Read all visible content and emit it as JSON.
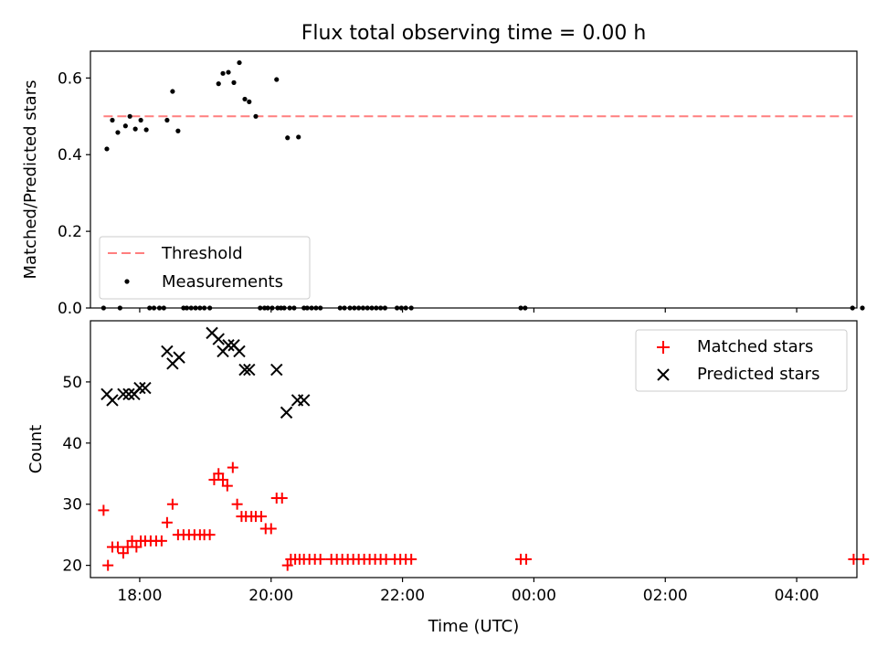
{
  "chart_data": {
    "title": "Flux total observing time = 0.00 h",
    "xlabel": "Time (UTC)",
    "xlim": [
      "17:15",
      "28:55"
    ],
    "xticks": [
      "18:00",
      "20:00",
      "22:00",
      "00:00",
      "02:00",
      "04:00"
    ],
    "top": {
      "type": "scatter",
      "ylabel": "Matched/Predicted stars",
      "ylim": [
        0,
        0.67
      ],
      "yticks": [
        "0.0",
        "0.2",
        "0.4",
        "0.6"
      ],
      "legend_position": "lower-left",
      "threshold": {
        "name": "Threshold",
        "value": 0.5,
        "x_range": [
          "17:27",
          "28:55"
        ],
        "color": "#ff7f7f",
        "style": "dashed"
      },
      "series": [
        {
          "name": "Measurements",
          "color": "#000000",
          "x": [
            "17:30",
            "17:35",
            "17:40",
            "17:47",
            "17:51",
            "17:56",
            "18:01",
            "18:06",
            "18:25",
            "18:30",
            "18:35",
            "19:12",
            "19:16",
            "19:21",
            "19:26",
            "19:31",
            "19:36",
            "19:40",
            "19:46",
            "20:05",
            "20:15",
            "20:25",
            "20:30",
            "17:27",
            "17:42",
            "18:09",
            "18:13",
            "18:18",
            "18:22",
            "18:40",
            "18:43",
            "18:47",
            "18:51",
            "18:55",
            "18:59",
            "19:04",
            "19:50",
            "19:54",
            "19:57",
            "20:01",
            "20:06",
            "20:09",
            "20:12",
            "20:17",
            "20:21",
            "20:33",
            "20:37",
            "20:41",
            "20:45",
            "21:03",
            "21:07",
            "21:12",
            "21:16",
            "21:20",
            "21:24",
            "21:28",
            "21:32",
            "21:36",
            "21:40",
            "21:44",
            "21:55",
            "21:59",
            "22:03",
            "22:08",
            "23:48",
            "23:52",
            "28:51",
            "29:00"
          ],
          "y": [
            0.415,
            0.49,
            0.458,
            0.475,
            0.5,
            0.467,
            0.49,
            0.465,
            0.49,
            0.565,
            0.462,
            0.585,
            0.612,
            0.615,
            0.588,
            0.64,
            0.545,
            0.538,
            0.5,
            0.596,
            0.444,
            0.446,
            0.0,
            0.0,
            0.0,
            0.0,
            0.0,
            0.0,
            0.0,
            0.0,
            0.0,
            0.0,
            0.0,
            0.0,
            0.0,
            0.0,
            0.0,
            0.0,
            0.0,
            0.0,
            0.0,
            0.0,
            0.0,
            0.0,
            0.0,
            0.0,
            0.0,
            0.0,
            0.0,
            0.0,
            0.0,
            0.0,
            0.0,
            0.0,
            0.0,
            0.0,
            0.0,
            0.0,
            0.0,
            0.0,
            0.0,
            0.0,
            0.0,
            0.0,
            0.0,
            0.0,
            0.0,
            0.0
          ]
        }
      ]
    },
    "bottom": {
      "type": "scatter",
      "ylabel": "Count",
      "ylim": [
        18,
        60
      ],
      "yticks": [
        "20",
        "30",
        "40",
        "50"
      ],
      "legend_position": "upper-right",
      "series": [
        {
          "name": "Matched stars",
          "color": "#ff0000",
          "marker": "+",
          "x": [
            "17:27",
            "17:31",
            "17:35",
            "17:40",
            "17:45",
            "17:49",
            "17:53",
            "17:57",
            "18:01",
            "18:05",
            "18:10",
            "18:15",
            "18:20",
            "18:25",
            "18:30",
            "18:35",
            "18:40",
            "18:45",
            "18:50",
            "18:55",
            "18:59",
            "19:04",
            "19:08",
            "19:12",
            "19:16",
            "19:20",
            "19:25",
            "19:29",
            "19:33",
            "19:37",
            "19:42",
            "19:46",
            "19:51",
            "19:55",
            "20:00",
            "20:05",
            "20:10",
            "20:15",
            "20:18",
            "20:22",
            "20:26",
            "20:30",
            "20:35",
            "20:40",
            "20:45",
            "20:55",
            "21:00",
            "21:05",
            "21:10",
            "21:15",
            "21:20",
            "21:25",
            "21:30",
            "21:35",
            "21:40",
            "21:45",
            "21:53",
            "21:58",
            "22:03",
            "22:08",
            "23:48",
            "23:53",
            "28:52",
            "29:01"
          ],
          "y": [
            29,
            20,
            23,
            23,
            22,
            23,
            24,
            23,
            24,
            24,
            24,
            24,
            24,
            27,
            30,
            25,
            25,
            25,
            25,
            25,
            25,
            25,
            34,
            35,
            34,
            33,
            36,
            30,
            28,
            28,
            28,
            28,
            28,
            26,
            26,
            31,
            31,
            20,
            21,
            21,
            21,
            21,
            21,
            21,
            21,
            21,
            21,
            21,
            21,
            21,
            21,
            21,
            21,
            21,
            21,
            21,
            21,
            21,
            21,
            21,
            21,
            21,
            21,
            21
          ]
        },
        {
          "name": "Predicted stars",
          "color": "#000000",
          "marker": "x",
          "x": [
            "17:30",
            "17:35",
            "17:45",
            "17:50",
            "17:55",
            "18:00",
            "18:05",
            "18:25",
            "18:30",
            "18:36",
            "19:06",
            "19:12",
            "19:16",
            "19:21",
            "19:26",
            "19:31",
            "19:36",
            "19:40",
            "20:05",
            "20:14",
            "20:24",
            "20:30"
          ],
          "y": [
            48,
            47,
            48,
            48,
            48,
            49,
            49,
            55,
            53,
            54,
            58,
            57,
            55,
            56,
            56,
            55,
            52,
            52,
            52,
            45,
            47,
            47
          ]
        }
      ]
    }
  }
}
